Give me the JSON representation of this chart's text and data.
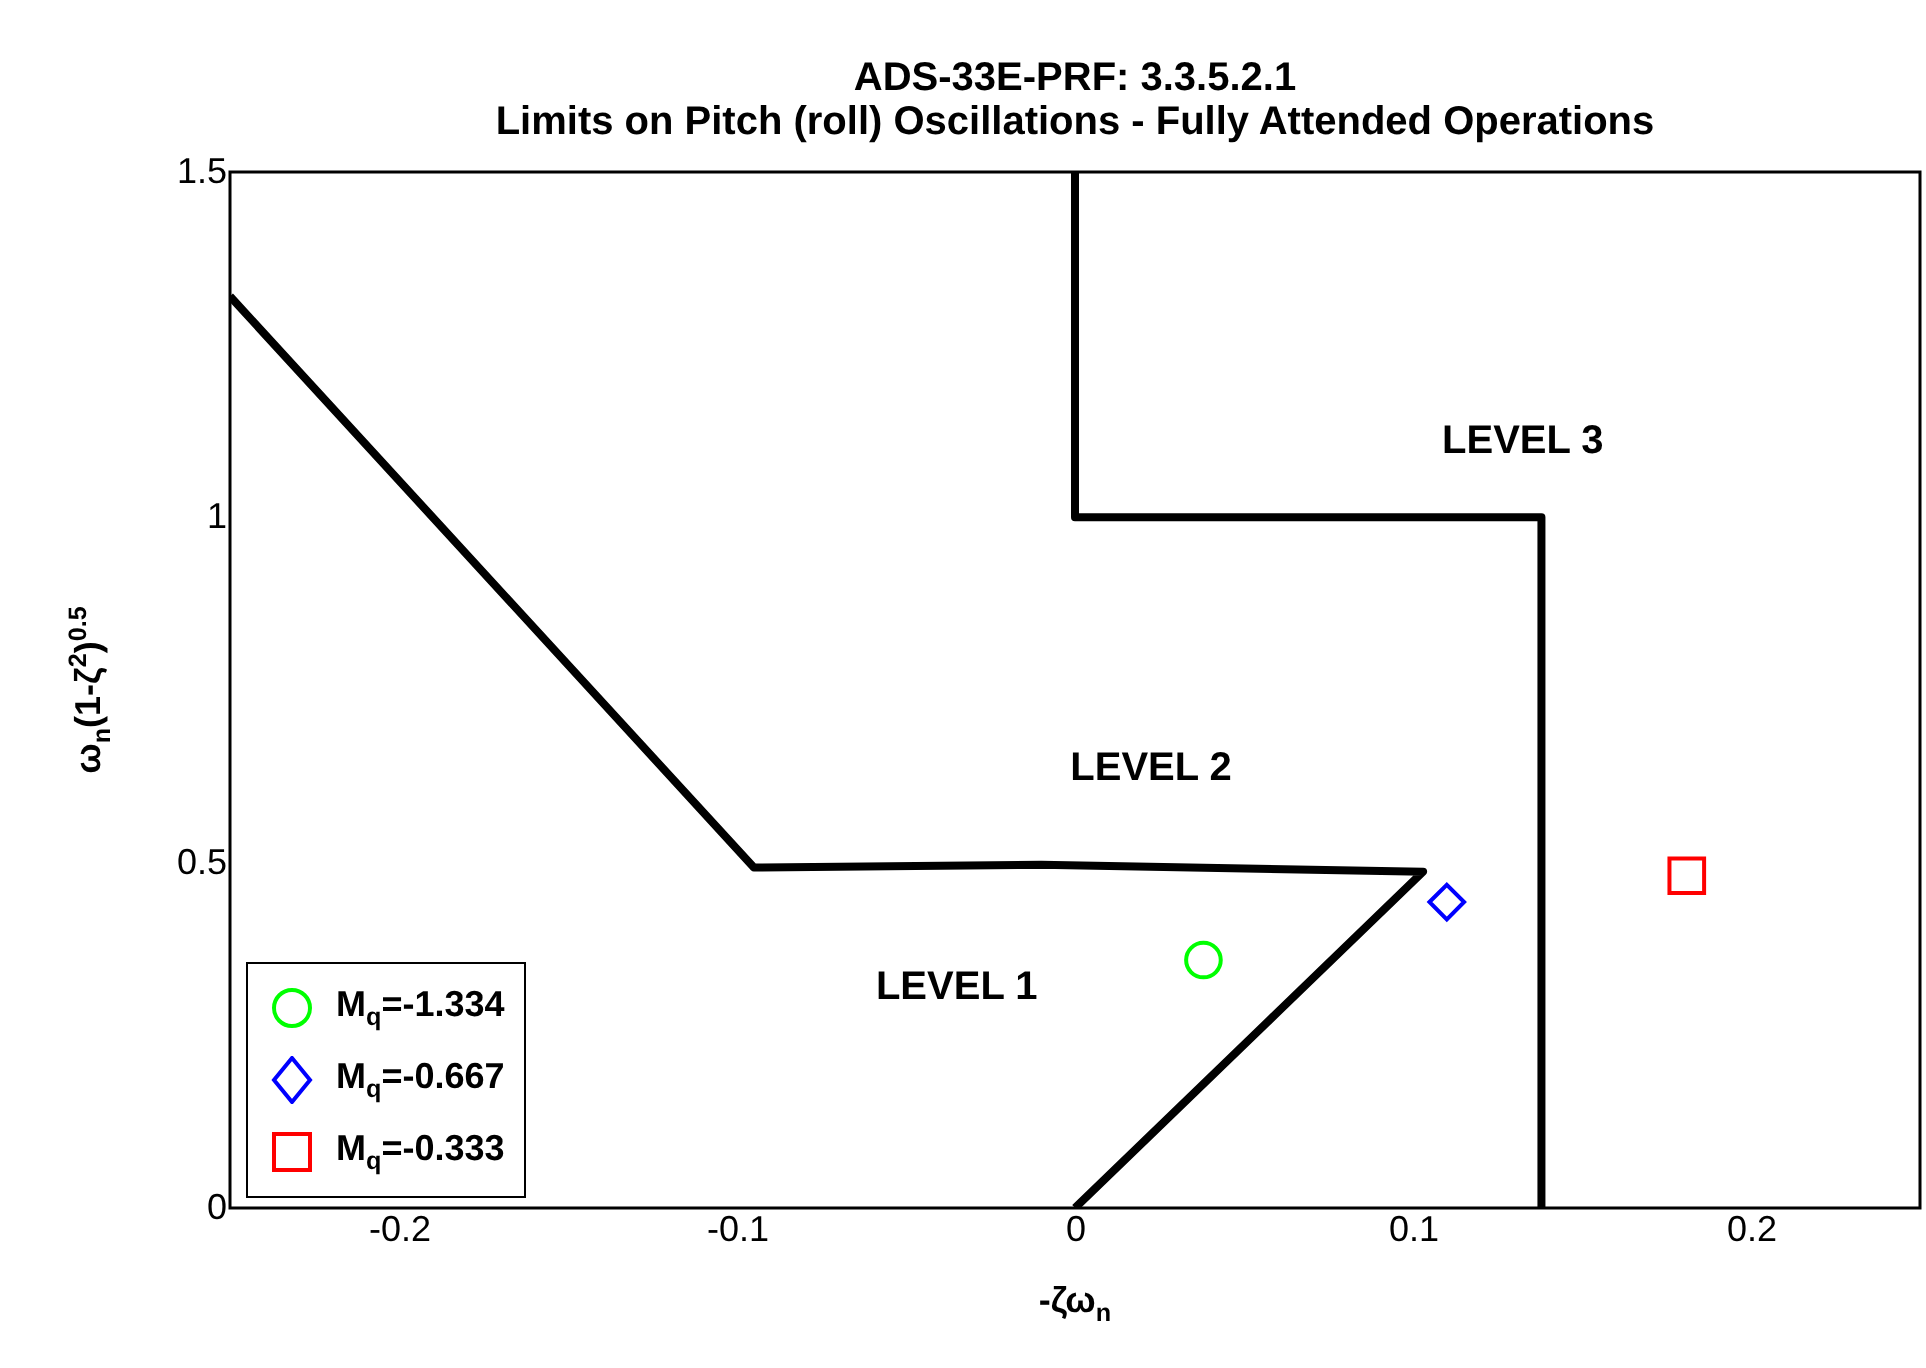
{
  "chart_data": {
    "type": "line",
    "title": "ADS-33E-PRF: 3.3.5.2.1\nLimits on Pitch (roll) Oscillations - Fully Attended Operations",
    "xlabel": "-ζω$_{n}$",
    "ylabel": "ω$_{n}$(1-ζ$^{2}$)$^{0.5}$",
    "xlim": [
      -0.25,
      0.25
    ],
    "ylim": [
      0,
      1.5
    ],
    "xticks": [
      -0.2,
      -0.1,
      0,
      0.1,
      0.2
    ],
    "yticks": [
      0,
      0.5,
      1,
      1.5
    ],
    "grid": false,
    "legend": "bottom left",
    "series": [
      {
        "color": "#000000",
        "x": [
          -0.25,
          -0.095,
          -0.01,
          0.103,
          0
        ],
        "values": [
          1.32,
          0.493,
          0.497,
          0.487,
          0
        ]
      },
      {
        "color": "#000000",
        "x": [
          0,
          0,
          0.138,
          0.138
        ],
        "values": [
          1.5,
          1.0,
          1.0,
          0
        ]
      },
      {
        "type": "scatter",
        "name": "M$_{q}$=-1.334",
        "color": "#00ff00",
        "marker": "circle",
        "x": [
          0.038
        ],
        "values": [
          0.359
        ]
      },
      {
        "type": "scatter",
        "name": "M$_{q}$=-0.667",
        "color": "#0000ff",
        "marker": "diamond",
        "x": [
          0.11
        ],
        "values": [
          0.443
        ]
      },
      {
        "type": "scatter",
        "name": "M$_{q}$=-0.333",
        "color": "#ff0000",
        "marker": "square",
        "x": [
          0.181
        ],
        "values": [
          0.481
        ]
      }
    ],
    "annotations": [
      "LEVEL 1",
      "LEVEL 2",
      "LEVEL 3"
    ]
  }
}
